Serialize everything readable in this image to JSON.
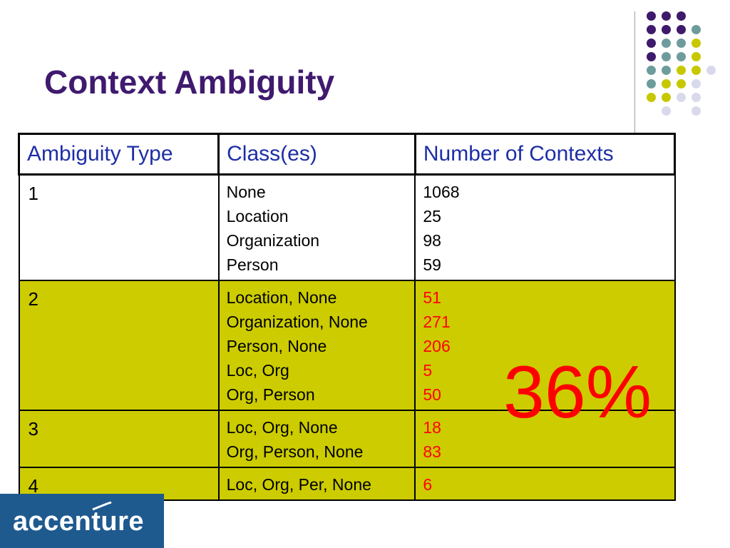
{
  "title": "Context Ambiguity",
  "table": {
    "headers": [
      "Ambiguity Type",
      "Class(es)",
      "Number of Contexts"
    ],
    "rows": [
      {
        "type": "1",
        "classes": [
          "None",
          "Location",
          "Organization",
          "Person"
        ],
        "counts": [
          "1068",
          "25",
          "98",
          "59"
        ],
        "highlight": false
      },
      {
        "type": "2",
        "classes": [
          "Location, None",
          "Organization, None",
          "Person, None",
          "Loc, Org",
          "Org, Person"
        ],
        "counts": [
          "51",
          "271",
          "206",
          "5",
          "50"
        ],
        "highlight": true
      },
      {
        "type": "3",
        "classes": [
          "Loc, Org, None",
          "Org, Person, None"
        ],
        "counts": [
          "18",
          "83"
        ],
        "highlight": true
      },
      {
        "type": "4",
        "classes": [
          "Loc, Org, Per, None"
        ],
        "counts": [
          "6"
        ],
        "highlight": true
      }
    ]
  },
  "callout": "36%",
  "logo": {
    "text": "accenture"
  },
  "colors": {
    "title": "#3f1a6f",
    "header_text": "#1d2ea6",
    "highlight_row": "#cccc00",
    "highlight_count": "#ff0000",
    "callout": "#ff0000",
    "logo_bg": "#1f5a8f"
  },
  "decor_dots": [
    [
      "#3d1a6b",
      "#3d1a6b",
      "#3d1a6b",
      null,
      null
    ],
    [
      "#3d1a6b",
      "#3d1a6b",
      "#3d1a6b",
      "#6e9c9c",
      null
    ],
    [
      "#3d1a6b",
      "#6e9c9c",
      "#6e9c9c",
      "#c8c800",
      null
    ],
    [
      "#3d1a6b",
      "#6e9c9c",
      "#6e9c9c",
      "#c8c800",
      null
    ],
    [
      "#6e9c9c",
      "#6e9c9c",
      "#c8c800",
      "#c8c800",
      "#d9d9ec"
    ],
    [
      "#6e9c9c",
      "#c8c800",
      "#c8c800",
      "#d9d9ec",
      null
    ],
    [
      "#c8c800",
      "#c8c800",
      "#d9d9ec",
      "#d9d9ec",
      null
    ],
    [
      null,
      "#d9d9ec",
      null,
      "#d9d9ec",
      null
    ]
  ]
}
